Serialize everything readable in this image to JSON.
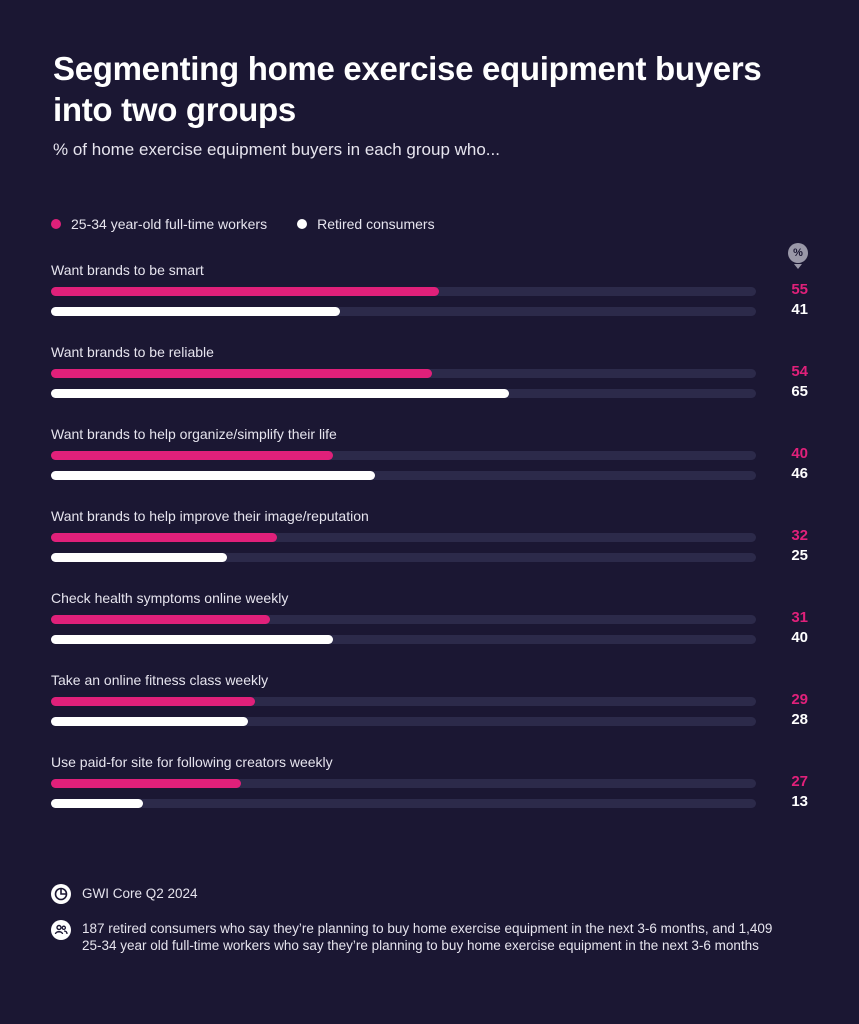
{
  "header": {
    "title": "Segmenting home exercise equipment buyers into two groups",
    "subtitle": "% of home exercise equipment buyers in each group who..."
  },
  "legend": {
    "series_a": "25-34 year-old full-time workers",
    "series_b": "Retired consumers"
  },
  "unit_badge": "%",
  "colors": {
    "series_a": "#e0207a",
    "series_b": "#ffffff",
    "track": "#2c2a4a",
    "background": "#1b1733"
  },
  "chart_data": {
    "type": "bar",
    "orientation": "horizontal",
    "categories": [
      "Want brands to be smart",
      "Want brands to be reliable",
      "Want brands to help organize/simplify their life",
      "Want brands to help improve their image/reputation",
      "Check health symptoms online weekly",
      "Take an online fitness class weekly",
      "Use paid-for site for following creators weekly"
    ],
    "series": [
      {
        "name": "25-34 year-old full-time workers",
        "values": [
          55,
          54,
          40,
          32,
          31,
          29,
          27
        ]
      },
      {
        "name": "Retired consumers",
        "values": [
          41,
          65,
          46,
          25,
          40,
          28,
          13
        ]
      }
    ],
    "xlim": [
      0,
      100
    ],
    "grid": false,
    "legend_position": "top-left"
  },
  "footer": {
    "source": "GWI Core Q2 2024",
    "base": "187 retired consumers who say they’re planning to buy home exercise equipment in the next 3-6 months, and 1,409 25-34 year old full-time workers who say they’re planning to buy home exercise equipment in the next 3-6 months"
  }
}
